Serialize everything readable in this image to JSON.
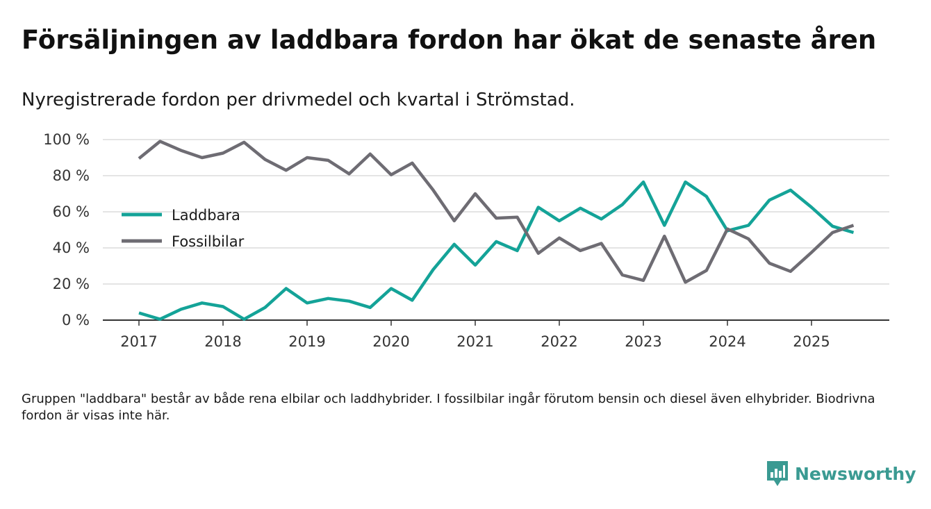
{
  "title": "Försäljningen av laddbara fordon har ökat de senaste åren",
  "subtitle": "Nyregistrerade fordon per drivmedel och kvartal i Strömstad.",
  "footnote": "Gruppen \"laddbara\" består av både rena elbilar och laddhybrider. I fossilbilar ingår förutom bensin och diesel även elhybrider. Biodrivna fordon är visas inte här.",
  "brand": {
    "name": "Newsworthy",
    "icon": "newsworthy-logo-icon",
    "color": "#3a9a92"
  },
  "chart_data": {
    "type": "line",
    "title": "Försäljningen av laddbara fordon har ökat de senaste åren",
    "xlabel": "",
    "ylabel": "",
    "ylim": [
      0,
      100
    ],
    "xlim": [
      2017,
      2025.9
    ],
    "yticks": [
      0,
      20,
      40,
      60,
      80,
      100
    ],
    "ytick_labels": [
      "0 %",
      "20 %",
      "40 %",
      "60 %",
      "80 %",
      "100 %"
    ],
    "xticks": [
      2017,
      2018,
      2019,
      2020,
      2021,
      2022,
      2023,
      2024,
      2025
    ],
    "xtick_labels": [
      "2017",
      "2018",
      "2019",
      "2020",
      "2021",
      "2022",
      "2023",
      "2024",
      "2025"
    ],
    "grid": true,
    "legend_position": "left-middle",
    "x": [
      2017.0,
      2017.25,
      2017.5,
      2017.75,
      2018.0,
      2018.25,
      2018.5,
      2018.75,
      2019.0,
      2019.25,
      2019.5,
      2019.75,
      2020.0,
      2020.25,
      2020.5,
      2020.75,
      2021.0,
      2021.25,
      2021.5,
      2021.75,
      2022.0,
      2022.25,
      2022.5,
      2022.75,
      2023.0,
      2023.25,
      2023.5,
      2023.75,
      2024.0,
      2024.25,
      2024.5,
      2024.75,
      2025.0,
      2025.25,
      2025.5
    ],
    "series": [
      {
        "name": "Laddbara",
        "color": "#14a398",
        "values": [
          4,
          0.5,
          6,
          9.5,
          7.5,
          0.5,
          7,
          17.5,
          9.5,
          12,
          10.5,
          7,
          17.5,
          11,
          28,
          42,
          30.5,
          43.5,
          38.5,
          62.5,
          55,
          62,
          56,
          64,
          76.5,
          52.5,
          76.5,
          68.5,
          49.5,
          52.5,
          66.5,
          72,
          62.5,
          52,
          48.5
        ]
      },
      {
        "name": "Fossilbilar",
        "color": "#6e6c73",
        "values": [
          89.5,
          99,
          94,
          90,
          92.5,
          98.5,
          89,
          83,
          90,
          88.5,
          81,
          92,
          80.5,
          87,
          72,
          55,
          70,
          56.5,
          57,
          37,
          45.5,
          38.5,
          42.5,
          25,
          22,
          46.5,
          21,
          27.5,
          50.5,
          45,
          31.5,
          27,
          37.5,
          48.5,
          52.5
        ]
      }
    ]
  }
}
